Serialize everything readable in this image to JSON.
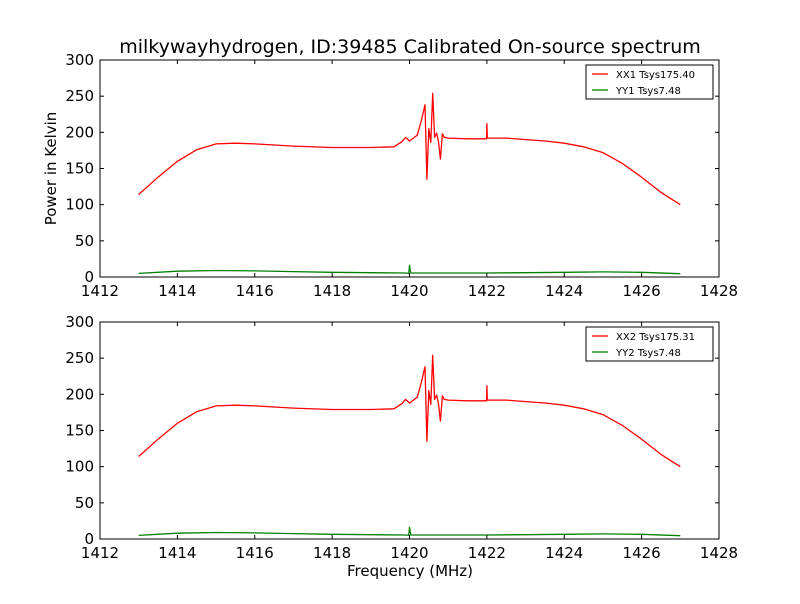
{
  "figure_title": "milkywayhydrogen, ID:39485 Calibrated On-source spectrum",
  "xlabel": "Frequency (MHz)",
  "colors": {
    "series_red": "#ff0000",
    "series_green": "#008000",
    "frame": "#000000",
    "background": "#ffffff"
  },
  "chart_data": [
    {
      "type": "line",
      "title": "milkywayhydrogen, ID:39485 Calibrated On-source spectrum",
      "xlabel": "",
      "ylabel": "Power in Kelvin",
      "xlim": [
        1412,
        1428
      ],
      "ylim": [
        0,
        300
      ],
      "xticks": [
        1412,
        1414,
        1416,
        1418,
        1420,
        1422,
        1424,
        1426,
        1428
      ],
      "yticks": [
        0,
        50,
        100,
        150,
        200,
        250,
        300
      ],
      "grid": false,
      "legend_position": "top-right",
      "series": [
        {
          "name": "XX1 Tsys175.40",
          "color": "#ff0000",
          "x": [
            1413.0,
            1413.5,
            1414.0,
            1414.5,
            1415.0,
            1415.5,
            1416.0,
            1417.0,
            1418.0,
            1419.0,
            1419.6,
            1419.8,
            1419.9,
            1420.0,
            1420.1,
            1420.2,
            1420.3,
            1420.4,
            1420.45,
            1420.5,
            1420.55,
            1420.6,
            1420.65,
            1420.7,
            1420.75,
            1420.8,
            1420.85,
            1420.9,
            1421.0,
            1421.5,
            1421.99,
            1422.0,
            1422.01,
            1422.5,
            1423.0,
            1423.5,
            1424.0,
            1424.5,
            1425.0,
            1425.5,
            1426.0,
            1426.5,
            1427.0
          ],
          "values": [
            114,
            138,
            160,
            176,
            184,
            185,
            184,
            181,
            179,
            179,
            180,
            187,
            193,
            188,
            192,
            196,
            215,
            238,
            135,
            205,
            186,
            254,
            193,
            199,
            187,
            163,
            198,
            193,
            192,
            191,
            191,
            212,
            192,
            192,
            190,
            188,
            185,
            180,
            172,
            157,
            138,
            117,
            100
          ]
        },
        {
          "name": "YY1 Tsys7.48",
          "color": "#008000",
          "x": [
            1413.0,
            1414.0,
            1415.0,
            1416.0,
            1417.0,
            1418.0,
            1419.0,
            1419.9,
            1419.98,
            1420.0,
            1420.03,
            1420.2,
            1421.0,
            1422.0,
            1423.0,
            1424.0,
            1425.0,
            1426.0,
            1427.0
          ],
          "values": [
            5,
            8,
            9,
            8.5,
            7.5,
            6.5,
            6,
            5.5,
            5,
            16,
            5.5,
            5.5,
            5.5,
            5.5,
            6,
            6.5,
            7,
            6.5,
            4.5
          ]
        }
      ]
    },
    {
      "type": "line",
      "title": "",
      "xlabel": "Frequency (MHz)",
      "ylabel": "",
      "xlim": [
        1412,
        1428
      ],
      "ylim": [
        0,
        300
      ],
      "xticks": [
        1412,
        1414,
        1416,
        1418,
        1420,
        1422,
        1424,
        1426,
        1428
      ],
      "yticks": [
        0,
        50,
        100,
        150,
        200,
        250,
        300
      ],
      "grid": false,
      "legend_position": "top-right",
      "series": [
        {
          "name": "XX2 Tsys175.31",
          "color": "#ff0000",
          "x": [
            1413.0,
            1413.5,
            1414.0,
            1414.5,
            1415.0,
            1415.5,
            1416.0,
            1417.0,
            1418.0,
            1419.0,
            1419.6,
            1419.8,
            1419.9,
            1420.0,
            1420.1,
            1420.2,
            1420.3,
            1420.4,
            1420.45,
            1420.5,
            1420.55,
            1420.6,
            1420.65,
            1420.7,
            1420.75,
            1420.8,
            1420.85,
            1420.9,
            1421.0,
            1421.5,
            1421.99,
            1422.0,
            1422.01,
            1422.5,
            1423.0,
            1423.5,
            1424.0,
            1424.5,
            1425.0,
            1425.5,
            1426.0,
            1426.5,
            1427.0
          ],
          "values": [
            114,
            138,
            160,
            176,
            184,
            185,
            184,
            181,
            179,
            179,
            180,
            187,
            193,
            188,
            192,
            196,
            215,
            238,
            135,
            205,
            186,
            254,
            193,
            199,
            187,
            163,
            198,
            193,
            192,
            191,
            191,
            212,
            192,
            192,
            190,
            188,
            185,
            180,
            172,
            157,
            138,
            117,
            100
          ]
        },
        {
          "name": "YY2 Tsys7.48",
          "color": "#008000",
          "x": [
            1413.0,
            1414.0,
            1415.0,
            1416.0,
            1417.0,
            1418.0,
            1419.0,
            1419.9,
            1419.98,
            1420.0,
            1420.03,
            1420.2,
            1421.0,
            1422.0,
            1423.0,
            1424.0,
            1425.0,
            1426.0,
            1427.0
          ],
          "values": [
            5,
            8,
            9,
            8.5,
            7.5,
            6.5,
            6,
            5.5,
            5,
            16,
            5.5,
            5.5,
            5.5,
            5.5,
            6,
            6.5,
            7,
            6.5,
            4.5
          ]
        }
      ]
    }
  ]
}
